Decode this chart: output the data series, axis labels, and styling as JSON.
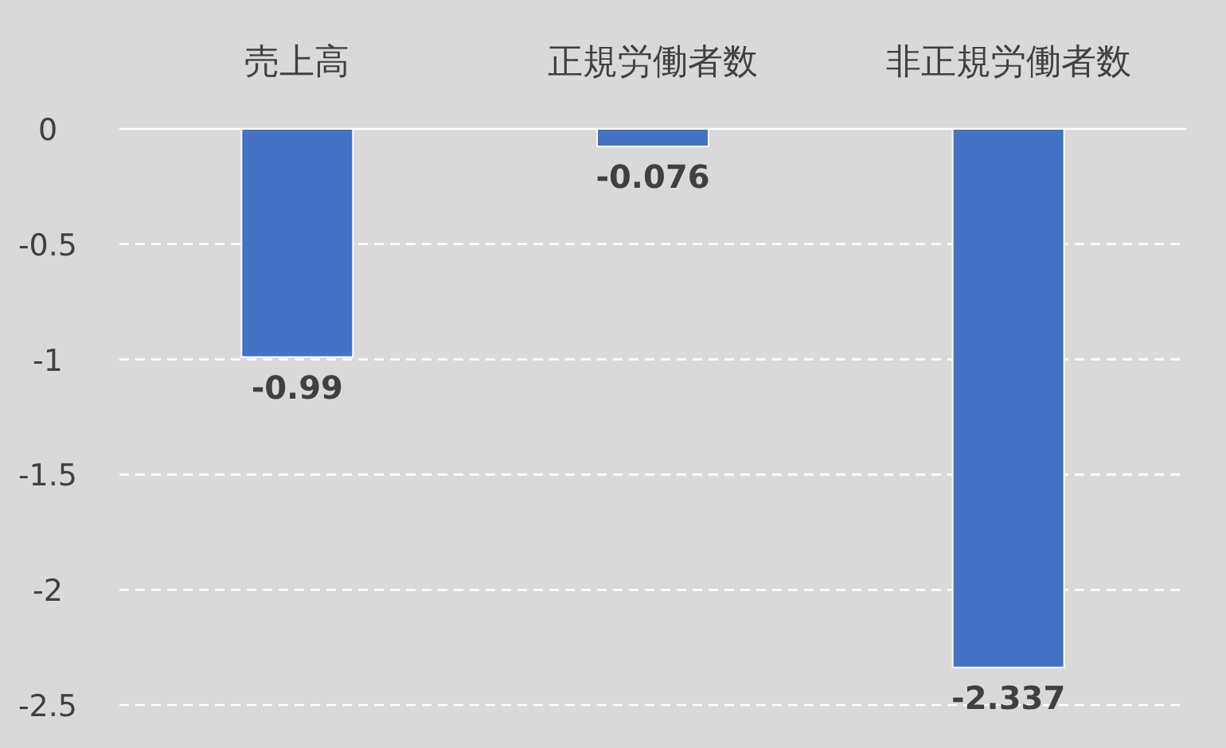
{
  "chart_data": {
    "type": "bar",
    "categories": [
      "売上高",
      "正規労働者数",
      "非正規労働者数"
    ],
    "values": [
      -0.99,
      -0.076,
      -2.337
    ],
    "color": "#4472c4",
    "ylim": [
      -2.5,
      0
    ],
    "yticks": [
      0,
      -0.5,
      -1,
      -1.5,
      -2,
      -2.5
    ],
    "grid": "y",
    "data_labels": true
  }
}
